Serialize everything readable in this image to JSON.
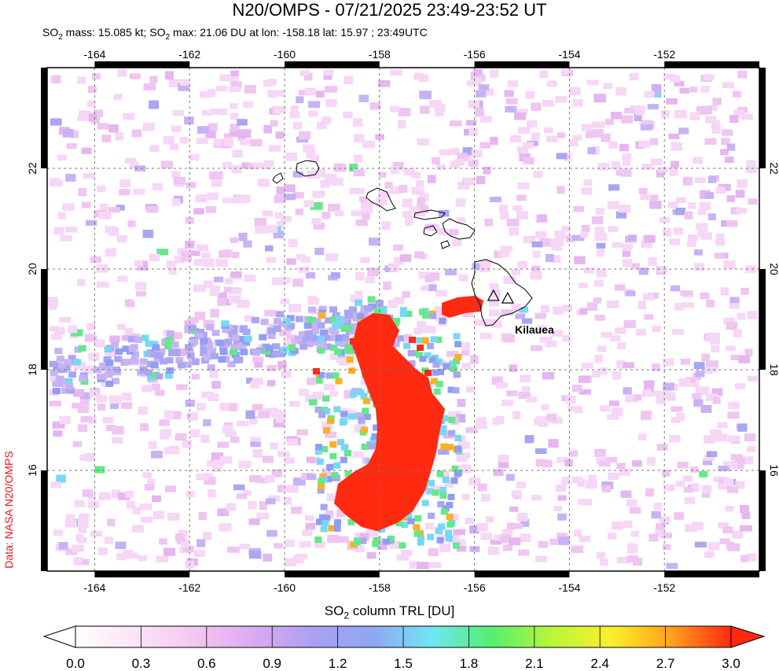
{
  "header": {
    "title": "N20/OMPS - 07/21/2025 23:49-23:52 UT",
    "subtitle_parts": {
      "so2_mass": "SO2 mass: 15.085 kt; SO2 max: 21.06 DU at lon: -158.18 lat: 15.97 ; 23:49UTC"
    }
  },
  "credit": "Data: NASA N20/OMPS",
  "map": {
    "lon_range": [
      -165,
      -150
    ],
    "lat_range": [
      14,
      24
    ],
    "lon_ticks": [
      -164,
      -162,
      -160,
      -158,
      -156,
      -154,
      -152
    ],
    "lat_ticks": [
      16,
      18,
      20,
      22
    ],
    "lon_tick_labels": [
      "-164",
      "-162",
      "-160",
      "-158",
      "-156",
      "-154",
      "-152"
    ],
    "lat_tick_labels": [
      "16",
      "18",
      "20",
      "22"
    ],
    "volcano_label": "Kilauea",
    "volcano_positions": [
      [
        -155.6,
        19.47
      ],
      [
        -155.3,
        19.42
      ]
    ],
    "plume_color": "#ff2a10",
    "background_speckle_colors": [
      "#f6d7f6",
      "#eec6f1",
      "#e5b6f0",
      "#c7b3f3",
      "#a9a6f2",
      "#8f9df4",
      "#78d8f4",
      "#64e888",
      "#ffb020",
      "#ff3c18"
    ]
  },
  "colorbar": {
    "title": "SO2 column TRL [DU]",
    "tick_labels": [
      "0.0",
      "0.3",
      "0.6",
      "0.9",
      "1.2",
      "1.5",
      "1.8",
      "2.1",
      "2.4",
      "2.7",
      "3.0"
    ],
    "colors": [
      "#ffffff",
      "#fbe4f6",
      "#f5c6f0",
      "#dba9f2",
      "#aaa0f3",
      "#8fa8f3",
      "#6fe7f3",
      "#55ef6d",
      "#b9f63a",
      "#fcef2c",
      "#ff9f1c",
      "#ff2a10"
    ]
  }
}
